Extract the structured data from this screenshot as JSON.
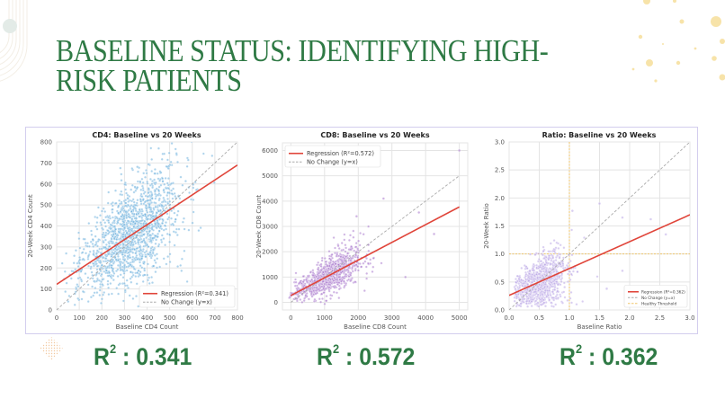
{
  "slide": {
    "title": "BASELINE STATUS: IDENTIFYING HIGH-RISK PATIENTS",
    "r2_labels": [
      {
        "prefix": "R",
        "sup": "2",
        "sep": " : ",
        "value": "0.341"
      },
      {
        "prefix": "R",
        "sup": "2",
        "sep": " : ",
        "value": "0.572"
      },
      {
        "prefix": "R",
        "sup": "2",
        "sep": " : ",
        "value": "0.362"
      }
    ],
    "colors": {
      "title": "#2f7a45",
      "frame": "#d3cdee",
      "regression": "#e0453a",
      "cd4_points": "#6aaedc",
      "cd8_points": "#a777cc",
      "ratio_points": "#b9a5e6",
      "threshold": "#f0c56a",
      "identity": "#aaaaaa"
    }
  },
  "chart_data": [
    {
      "type": "scatter",
      "title": "CD4: Baseline vs 20 Weeks",
      "xlabel": "Baseline CD4 Count",
      "ylabel": "20-Week CD4 Count",
      "xlim": [
        0,
        800
      ],
      "ylim": [
        0,
        800
      ],
      "xticks": [
        0,
        100,
        200,
        300,
        400,
        500,
        600,
        700,
        800
      ],
      "yticks": [
        0,
        100,
        200,
        300,
        400,
        500,
        600,
        700,
        800
      ],
      "regression": {
        "label": "Regression (R²=0.341)",
        "x": [
          0,
          800
        ],
        "y": [
          122,
          690
        ],
        "r2": 0.341
      },
      "identity_line": {
        "label": "No Change (y=x)",
        "x": [
          0,
          800
        ],
        "y": [
          0,
          800
        ]
      },
      "legend_position": "lower right",
      "point_cloud": {
        "n": 1500,
        "x_mean": 330,
        "x_sd": 110,
        "slope": 0.71,
        "intercept": 122,
        "resid_sd": 105
      },
      "grid": true
    },
    {
      "type": "scatter",
      "title": "CD8: Baseline vs 20 Weeks",
      "xlabel": "Baseline CD8 Count",
      "ylabel": "20-Week CD8 Count",
      "xlim": [
        -250,
        5250
      ],
      "ylim": [
        -300,
        6300
      ],
      "xticks": [
        0,
        1000,
        2000,
        3000,
        4000,
        5000
      ],
      "yticks": [
        0,
        1000,
        2000,
        3000,
        4000,
        5000,
        6000
      ],
      "regression": {
        "label": "Regression (R²=0.572)",
        "x": [
          0,
          5000
        ],
        "y": [
          270,
          3770
        ],
        "r2": 0.572
      },
      "identity_line": {
        "label": "No Change (y=x)",
        "x": [
          0,
          5000
        ],
        "y": [
          0,
          5000
        ]
      },
      "legend_position": "upper left",
      "point_cloud": {
        "n": 900,
        "x_mean": 1100,
        "x_sd": 480,
        "slope": 0.7,
        "intercept": 270,
        "resid_sd": 330
      },
      "outliers": [
        [
          5000,
          6000
        ],
        [
          2750,
          4100
        ],
        [
          3800,
          3550
        ],
        [
          4250,
          2700
        ],
        [
          3400,
          1000
        ],
        [
          1950,
          3400
        ]
      ],
      "grid": true
    },
    {
      "type": "scatter",
      "title": "Ratio: Baseline vs 20 Weeks",
      "xlabel": "Baseline Ratio",
      "ylabel": "20-Week Ratio",
      "xlim": [
        0,
        3
      ],
      "ylim": [
        0,
        3
      ],
      "xticks": [
        0.0,
        0.5,
        1.0,
        1.5,
        2.0,
        2.5,
        3.0
      ],
      "yticks": [
        0.0,
        0.5,
        1.0,
        1.5,
        2.0,
        2.5,
        3.0
      ],
      "regression": {
        "label": "Regression (R²=0.362)",
        "x": [
          0,
          3
        ],
        "y": [
          0.26,
          1.7
        ],
        "r2": 0.362
      },
      "identity_line": {
        "label": "No Change (y=x)",
        "x": [
          0,
          3
        ],
        "y": [
          0,
          3
        ]
      },
      "threshold": {
        "label": "Healthy Threshold",
        "x": 1.0,
        "y": 1.0
      },
      "legend_position": "lower right",
      "point_cloud": {
        "n": 900,
        "x_mean": 0.52,
        "x_sd": 0.22,
        "slope": 0.48,
        "intercept": 0.26,
        "resid_sd": 0.2
      },
      "outliers": [
        [
          1.5,
          1.9
        ],
        [
          2.35,
          1.62
        ],
        [
          1.88,
          1.65
        ],
        [
          2.6,
          1.35
        ],
        [
          1.88,
          0.7
        ],
        [
          1.62,
          0.38
        ],
        [
          1.05,
          1.77
        ]
      ],
      "grid": true
    }
  ]
}
